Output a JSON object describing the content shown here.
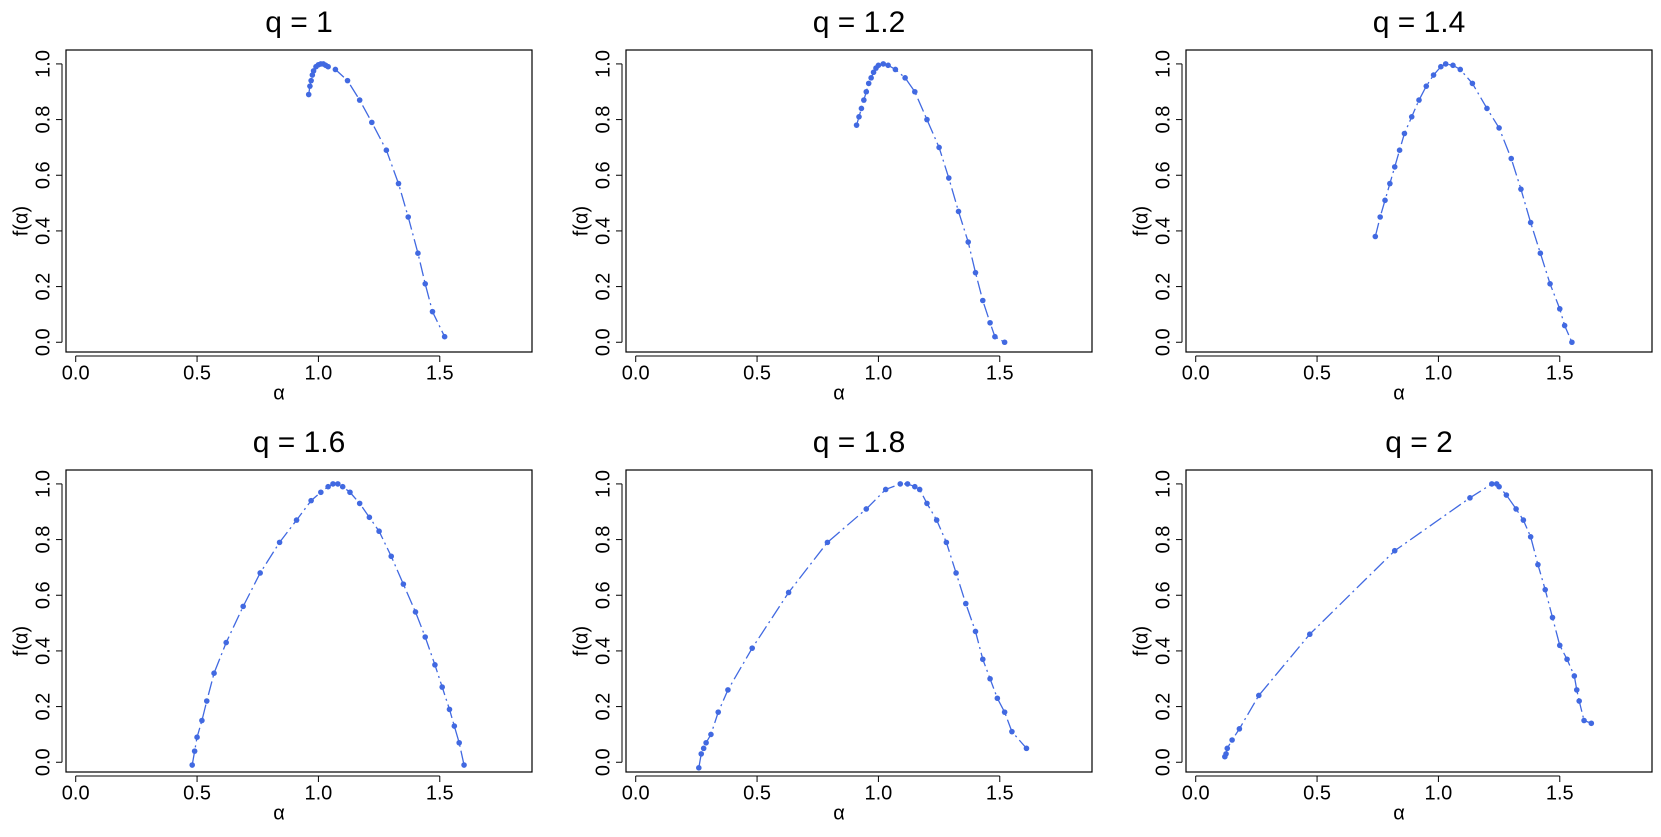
{
  "chart_data": [
    {
      "type": "line",
      "title": "q = 1",
      "x_label": "α",
      "y_label": "f(α)",
      "color": "#4169e1",
      "line_style": "dashed",
      "markers": true,
      "x": [
        0.96,
        0.965,
        0.97,
        0.975,
        0.98,
        0.99,
        1.0,
        1.01,
        1.02,
        1.03,
        1.04,
        1.07,
        1.12,
        1.17,
        1.22,
        1.28,
        1.33,
        1.37,
        1.41,
        1.44,
        1.47,
        1.52
      ],
      "values": [
        0.89,
        0.92,
        0.94,
        0.96,
        0.975,
        0.99,
        0.997,
        1.0,
        1.0,
        0.995,
        0.99,
        0.98,
        0.94,
        0.87,
        0.79,
        0.69,
        0.57,
        0.45,
        0.32,
        0.21,
        0.11,
        0.02
      ],
      "xlim": [
        -0.04,
        1.88
      ],
      "ylim": [
        -0.035,
        1.05
      ],
      "xticks": [
        {
          "value": 0,
          "label": "0.0"
        },
        0.5,
        {
          "value": 1,
          "label": "1.0"
        },
        1.5
      ],
      "yticks": [
        {
          "value": 0,
          "label": "0.0"
        },
        0.2,
        0.4,
        0.6,
        0.8,
        {
          "value": 1,
          "label": "1.0"
        }
      ]
    },
    {
      "type": "line",
      "title": "q = 1.2",
      "x_label": "α",
      "y_label": "f(α)",
      "color": "#4169e1",
      "line_style": "dashed",
      "markers": true,
      "x": [
        0.91,
        0.92,
        0.93,
        0.94,
        0.95,
        0.96,
        0.97,
        0.98,
        0.99,
        1.0,
        1.02,
        1.04,
        1.07,
        1.11,
        1.15,
        1.2,
        1.25,
        1.29,
        1.33,
        1.37,
        1.4,
        1.43,
        1.46,
        1.48,
        1.52
      ],
      "values": [
        0.78,
        0.81,
        0.84,
        0.87,
        0.9,
        0.93,
        0.95,
        0.97,
        0.985,
        0.995,
        1.0,
        0.995,
        0.98,
        0.95,
        0.9,
        0.8,
        0.7,
        0.59,
        0.47,
        0.36,
        0.25,
        0.15,
        0.07,
        0.02,
        0.0
      ],
      "xlim": [
        -0.04,
        1.88
      ],
      "ylim": [
        -0.035,
        1.05
      ],
      "xticks": [
        {
          "value": 0,
          "label": "0.0"
        },
        0.5,
        {
          "value": 1,
          "label": "1.0"
        },
        1.5
      ],
      "yticks": [
        {
          "value": 0,
          "label": "0.0"
        },
        0.2,
        0.4,
        0.6,
        0.8,
        {
          "value": 1,
          "label": "1.0"
        }
      ]
    },
    {
      "type": "line",
      "title": "q = 1.4",
      "x_label": "α",
      "y_label": "f(α)",
      "color": "#4169e1",
      "line_style": "dashed",
      "markers": true,
      "x": [
        0.74,
        0.76,
        0.78,
        0.8,
        0.82,
        0.84,
        0.86,
        0.89,
        0.92,
        0.95,
        0.98,
        1.01,
        1.03,
        1.06,
        1.09,
        1.14,
        1.2,
        1.25,
        1.3,
        1.34,
        1.38,
        1.42,
        1.46,
        1.5,
        1.52,
        1.55
      ],
      "values": [
        0.38,
        0.45,
        0.51,
        0.57,
        0.63,
        0.69,
        0.75,
        0.81,
        0.87,
        0.92,
        0.96,
        0.99,
        1.0,
        0.995,
        0.98,
        0.93,
        0.84,
        0.77,
        0.66,
        0.55,
        0.43,
        0.32,
        0.21,
        0.12,
        0.06,
        0.0
      ],
      "xlim": [
        -0.04,
        1.88
      ],
      "ylim": [
        -0.035,
        1.05
      ],
      "xticks": [
        {
          "value": 0,
          "label": "0.0"
        },
        0.5,
        {
          "value": 1,
          "label": "1.0"
        },
        1.5
      ],
      "yticks": [
        {
          "value": 0,
          "label": "0.0"
        },
        0.2,
        0.4,
        0.6,
        0.8,
        {
          "value": 1,
          "label": "1.0"
        }
      ]
    },
    {
      "type": "line",
      "title": "q = 1.6",
      "x_label": "α",
      "y_label": "f(α)",
      "color": "#4169e1",
      "line_style": "dashed",
      "markers": true,
      "x": [
        0.48,
        0.49,
        0.5,
        0.52,
        0.54,
        0.57,
        0.62,
        0.69,
        0.76,
        0.84,
        0.91,
        0.97,
        1.01,
        1.04,
        1.06,
        1.08,
        1.1,
        1.13,
        1.17,
        1.21,
        1.25,
        1.3,
        1.35,
        1.4,
        1.44,
        1.48,
        1.51,
        1.54,
        1.56,
        1.58,
        1.6
      ],
      "values": [
        -0.01,
        0.04,
        0.09,
        0.15,
        0.22,
        0.32,
        0.43,
        0.56,
        0.68,
        0.79,
        0.87,
        0.94,
        0.97,
        0.99,
        1.0,
        1.0,
        0.99,
        0.97,
        0.93,
        0.88,
        0.83,
        0.74,
        0.64,
        0.54,
        0.45,
        0.35,
        0.27,
        0.19,
        0.13,
        0.07,
        -0.01
      ],
      "xlim": [
        -0.04,
        1.88
      ],
      "ylim": [
        -0.035,
        1.05
      ],
      "xticks": [
        {
          "value": 0,
          "label": "0.0"
        },
        0.5,
        {
          "value": 1,
          "label": "1.0"
        },
        1.5
      ],
      "yticks": [
        {
          "value": 0,
          "label": "0.0"
        },
        0.2,
        0.4,
        0.6,
        0.8,
        {
          "value": 1,
          "label": "1.0"
        }
      ]
    },
    {
      "type": "line",
      "title": "q = 1.8",
      "x_label": "α",
      "y_label": "f(α)",
      "color": "#4169e1",
      "line_style": "dashed",
      "markers": true,
      "x": [
        0.26,
        0.27,
        0.28,
        0.29,
        0.31,
        0.34,
        0.38,
        0.48,
        0.63,
        0.79,
        0.95,
        1.03,
        1.09,
        1.12,
        1.15,
        1.17,
        1.2,
        1.24,
        1.28,
        1.32,
        1.36,
        1.4,
        1.43,
        1.46,
        1.49,
        1.52,
        1.55,
        1.61
      ],
      "values": [
        -0.02,
        0.03,
        0.05,
        0.07,
        0.1,
        0.18,
        0.26,
        0.41,
        0.61,
        0.79,
        0.91,
        0.98,
        1.0,
        1.0,
        0.99,
        0.98,
        0.93,
        0.87,
        0.79,
        0.68,
        0.57,
        0.47,
        0.37,
        0.3,
        0.23,
        0.18,
        0.11,
        0.05
      ],
      "xlim": [
        -0.04,
        1.88
      ],
      "ylim": [
        -0.035,
        1.05
      ],
      "xticks": [
        {
          "value": 0,
          "label": "0.0"
        },
        0.5,
        {
          "value": 1,
          "label": "1.0"
        },
        1.5
      ],
      "yticks": [
        {
          "value": 0,
          "label": "0.0"
        },
        0.2,
        0.4,
        0.6,
        0.8,
        {
          "value": 1,
          "label": "1.0"
        }
      ]
    },
    {
      "type": "line",
      "title": "q = 2",
      "x_label": "α",
      "y_label": "f(α)",
      "color": "#4169e1",
      "line_style": "dashed",
      "markers": true,
      "x": [
        0.12,
        0.125,
        0.13,
        0.15,
        0.18,
        0.26,
        0.47,
        0.82,
        1.13,
        1.22,
        1.24,
        1.25,
        1.28,
        1.32,
        1.35,
        1.38,
        1.41,
        1.44,
        1.47,
        1.5,
        1.53,
        1.56,
        1.57,
        1.58,
        1.6,
        1.63
      ],
      "values": [
        0.02,
        0.03,
        0.05,
        0.08,
        0.12,
        0.24,
        0.46,
        0.76,
        0.95,
        1.0,
        1.0,
        0.99,
        0.96,
        0.91,
        0.87,
        0.81,
        0.71,
        0.62,
        0.52,
        0.42,
        0.37,
        0.31,
        0.26,
        0.22,
        0.15,
        0.14
      ],
      "xlim": [
        -0.04,
        1.88
      ],
      "ylim": [
        -0.035,
        1.05
      ],
      "xticks": [
        {
          "value": 0,
          "label": "0.0"
        },
        0.5,
        {
          "value": 1,
          "label": "1.0"
        },
        1.5
      ],
      "yticks": [
        {
          "value": 0,
          "label": "0.0"
        },
        0.2,
        0.4,
        0.6,
        0.8,
        {
          "value": 1,
          "label": "1.0"
        }
      ]
    }
  ]
}
